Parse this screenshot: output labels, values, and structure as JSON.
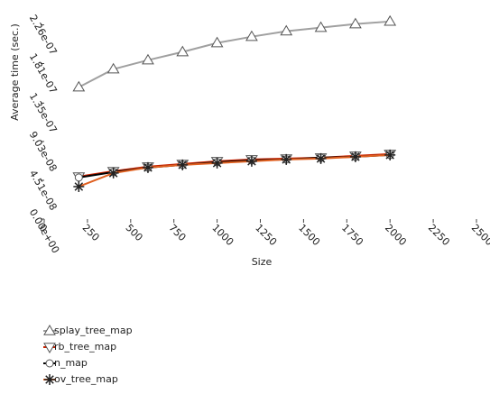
{
  "chart_data": {
    "type": "line",
    "xlabel": "Size",
    "ylabel": "Average time (sec.)",
    "x": [
      200,
      400,
      600,
      800,
      1000,
      1200,
      1400,
      1600,
      1800,
      2000
    ],
    "xlim": [
      0,
      2500
    ],
    "xticks": [
      0,
      250,
      500,
      750,
      1000,
      1250,
      1500,
      1750,
      2000,
      2250,
      2500
    ],
    "ylim": [
      0,
      2.34e-07
    ],
    "yticks": [
      {
        "value": 0,
        "label": "0.00e+00"
      },
      {
        "value": 4.51e-08,
        "label": "4.51e-08"
      },
      {
        "value": 9.03e-08,
        "label": "9.03e-08"
      },
      {
        "value": 1.35e-07,
        "label": "1.35e-07"
      },
      {
        "value": 1.81e-07,
        "label": "1.81e-07"
      },
      {
        "value": 2.26e-07,
        "label": "2.26e-07"
      }
    ],
    "series": [
      {
        "name": "splay_tree_map",
        "color": "#a0a0a0",
        "marker": "triangle-up",
        "values": [
          1.535e-07,
          1.745e-07,
          1.85e-07,
          1.945e-07,
          2.05e-07,
          2.123e-07,
          2.187e-07,
          2.228e-07,
          2.27e-07,
          2.3e-07
        ]
      },
      {
        "name": "rb_tree_map",
        "color": "#cc2200",
        "marker": "triangle-down",
        "values": [
          4.94e-08,
          5.57e-08,
          6.1e-08,
          6.41e-08,
          6.73e-08,
          6.94e-08,
          7.04e-08,
          7.15e-08,
          7.36e-08,
          7.57e-08
        ]
      },
      {
        "name": "n_map",
        "color": "#000000",
        "marker": "circle",
        "values": [
          4.84e-08,
          5.47e-08,
          6e-08,
          6.31e-08,
          6.62e-08,
          6.83e-08,
          6.94e-08,
          7.15e-08,
          7.25e-08,
          7.46e-08
        ]
      },
      {
        "name": "ov_tree_map",
        "color": "#e06020",
        "marker": "asterisk",
        "values": [
          3.78e-08,
          5.36e-08,
          6e-08,
          6.31e-08,
          6.52e-08,
          6.73e-08,
          6.94e-08,
          7.04e-08,
          7.25e-08,
          7.46e-08
        ]
      }
    ]
  }
}
